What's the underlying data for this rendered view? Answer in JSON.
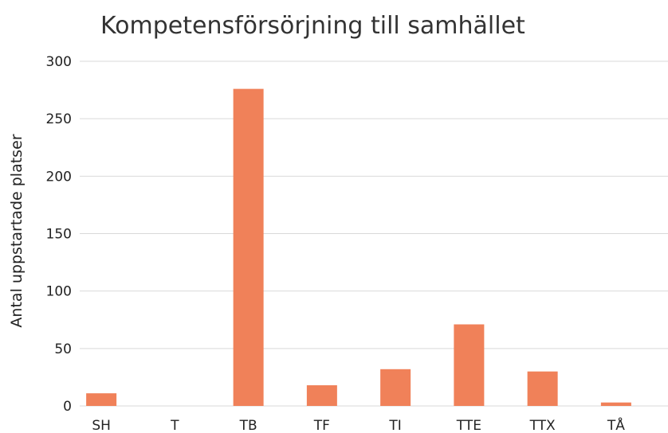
{
  "chart_data": {
    "type": "bar",
    "title": "Kompetensförsörjning till samhället",
    "xlabel": "",
    "ylabel": "Antal uppstartade platser",
    "categories": [
      "SH",
      "T",
      "TB",
      "TF",
      "TI",
      "TTE",
      "TTX",
      "TÅ"
    ],
    "values": [
      11,
      0,
      276,
      18,
      32,
      71,
      30,
      3
    ],
    "ylim": [
      0,
      300
    ],
    "yticks": [
      "0",
      "50",
      "100",
      "150",
      "200",
      "250",
      "300"
    ],
    "bar_color": "#f08159",
    "grid": true,
    "legend": "none"
  }
}
